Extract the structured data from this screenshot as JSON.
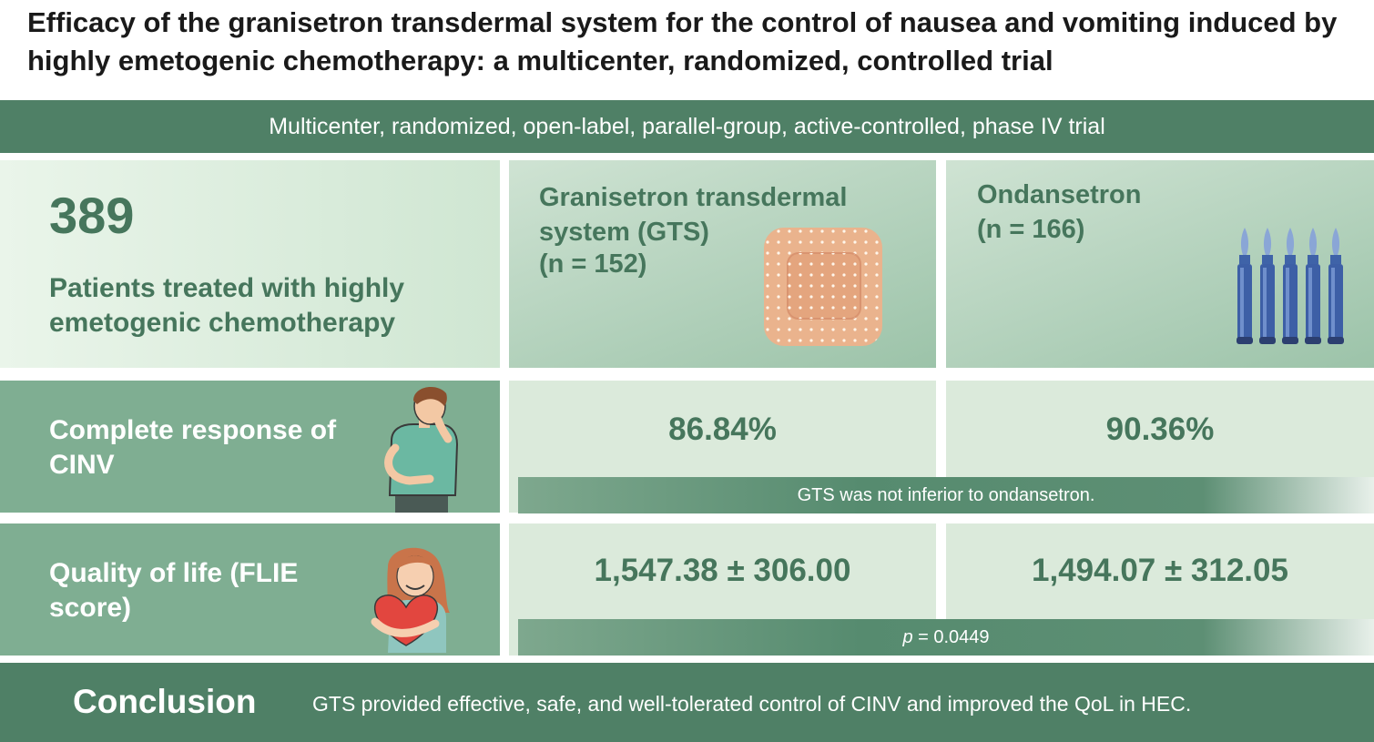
{
  "title": "Efficacy of the granisetron transdermal system for the control of nausea and vomiting induced by highly emetogenic chemotherapy: a multicenter, randomized, controlled trial",
  "design": "Multicenter, randomized, open-label, parallel-group, active-controlled, phase IV trial",
  "patients": {
    "count": "389",
    "label": "Patients treated with highly emetogenic chemotherapy"
  },
  "arms": [
    {
      "name": "Granisetron transdermal system (GTS)",
      "n": "(n = 152)",
      "icon": "patch-icon"
    },
    {
      "name": "Ondansetron",
      "n": "(n = 166)",
      "icon": "vials-icon"
    }
  ],
  "outcomes": [
    {
      "label": "Complete response of CINV",
      "values": [
        "86.84%",
        "90.36%"
      ],
      "note": "GTS was not inferior to ondansetron.",
      "icon": "nauseous-person-icon"
    },
    {
      "label": "Quality of life (FLIE score)",
      "values": [
        "1,547.38 ± 306.00",
        "1,494.07 ± 312.05"
      ],
      "note_italic": "p",
      "note_rest": " = 0.0449",
      "icon": "woman-hugging-heart-icon"
    }
  ],
  "conclusion": {
    "heading": "Conclusion",
    "text": "GTS provided effective, safe, and well-tolerated control of CINV and improved the QoL in HEC."
  },
  "colors": {
    "primary": "#4f8066",
    "text_green": "#46765c",
    "row_green": "#7fae92"
  }
}
